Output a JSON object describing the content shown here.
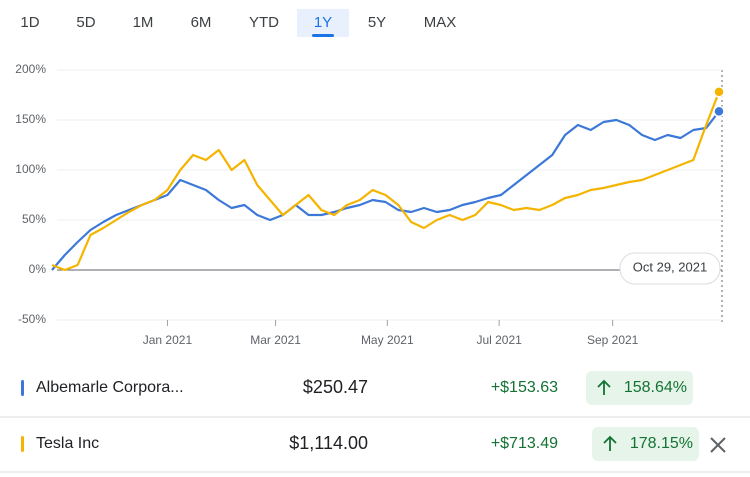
{
  "tabs": [
    "1D",
    "5D",
    "1M",
    "6M",
    "YTD",
    "1Y",
    "5Y",
    "MAX"
  ],
  "active_tab": 5,
  "chart_data": {
    "type": "line",
    "crosshair_label": "Oct 29, 2021",
    "xlim": [
      0,
      52
    ],
    "xticks": [
      {
        "value": 9,
        "label": "Jan 2021"
      },
      {
        "value": 17.43,
        "label": "Mar 2021"
      },
      {
        "value": 26.14,
        "label": "May 2021"
      },
      {
        "value": 34.86,
        "label": "Jul 2021"
      },
      {
        "value": 43.71,
        "label": "Sep 2021"
      }
    ],
    "ylim": [
      -50,
      200
    ],
    "yticks": [
      {
        "value": -50,
        "label": "-50%"
      },
      {
        "value": 0,
        "label": "0%"
      },
      {
        "value": 50,
        "label": "50%"
      },
      {
        "value": 100,
        "label": "100%"
      },
      {
        "value": 150,
        "label": "150%"
      },
      {
        "value": 200,
        "label": "200%"
      }
    ],
    "grid": true,
    "series": [
      {
        "name": "Albemarle Corpora...",
        "color": "#3c78d8",
        "values": [
          0,
          15,
          28,
          40,
          48,
          55,
          60,
          65,
          70,
          75,
          90,
          85,
          80,
          70,
          62,
          65,
          55,
          50,
          55,
          65,
          55,
          55,
          58,
          62,
          65,
          70,
          68,
          60,
          58,
          62,
          58,
          60,
          65,
          68,
          72,
          75,
          85,
          95,
          105,
          115,
          135,
          145,
          140,
          148,
          150,
          145,
          135,
          130,
          135,
          132,
          140,
          142,
          158.64
        ]
      },
      {
        "name": "Tesla Inc",
        "color": "#f4b400",
        "values": [
          5,
          0,
          5,
          35,
          42,
          50,
          58,
          65,
          70,
          80,
          100,
          115,
          110,
          120,
          100,
          110,
          85,
          70,
          55,
          65,
          75,
          60,
          55,
          65,
          70,
          80,
          75,
          65,
          48,
          42,
          50,
          55,
          50,
          55,
          68,
          65,
          60,
          62,
          60,
          65,
          72,
          75,
          80,
          82,
          85,
          88,
          90,
          95,
          100,
          105,
          110,
          145,
          178.15
        ]
      }
    ]
  },
  "rows": [
    {
      "price": "$250.47",
      "change": "+$153.63",
      "percent": "158.64%"
    },
    {
      "price": "$1,114.00",
      "change": "+$713.49",
      "percent": "178.15%"
    }
  ]
}
